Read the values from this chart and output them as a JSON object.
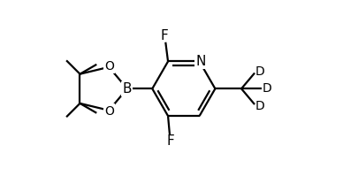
{
  "bg_color": "#ffffff",
  "line_color": "#000000",
  "line_width": 1.6,
  "font_size": 10,
  "fig_width": 3.88,
  "fig_height": 1.99,
  "dpi": 100,
  "xlim": [
    0,
    9.7
  ],
  "ylim": [
    0,
    5.0
  ]
}
